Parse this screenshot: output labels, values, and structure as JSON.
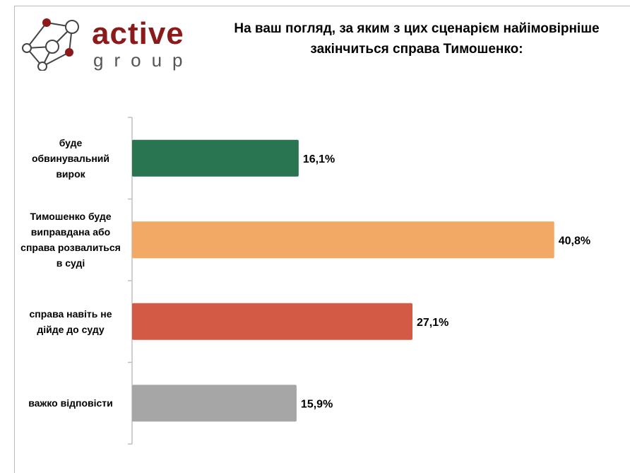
{
  "logo": {
    "word1": "active",
    "word2": "group"
  },
  "chart_data": {
    "type": "bar",
    "orientation": "horizontal",
    "title": "На ваш погляд, за яким з цих сценарієм найімовірніше закінчиться справа Тимошенко:",
    "categories": [
      "буде обвинувальний вирок",
      "Тимошенко буде виправдана або справа розвалиться в суді",
      "справа навіть не дійде до суду",
      "важко відповісти"
    ],
    "category_lines": [
      [
        "буде",
        "обвинувальний",
        "вирок"
      ],
      [
        "Тимошенко буде",
        "виправдана або",
        "справа розвалиться",
        "в суді"
      ],
      [
        "справа навіть не",
        "дійде до суду"
      ],
      [
        "важко відповісти"
      ]
    ],
    "values": [
      16.1,
      40.8,
      27.1,
      15.9
    ],
    "labels": [
      "16,1%",
      "40,8%",
      "27,1%",
      "15,9%"
    ],
    "colors": [
      "#2a7551",
      "#f2a965",
      "#d35b45",
      "#a6a6a6"
    ],
    "xlim": [
      0,
      42
    ],
    "grid": false,
    "legend": "none"
  }
}
